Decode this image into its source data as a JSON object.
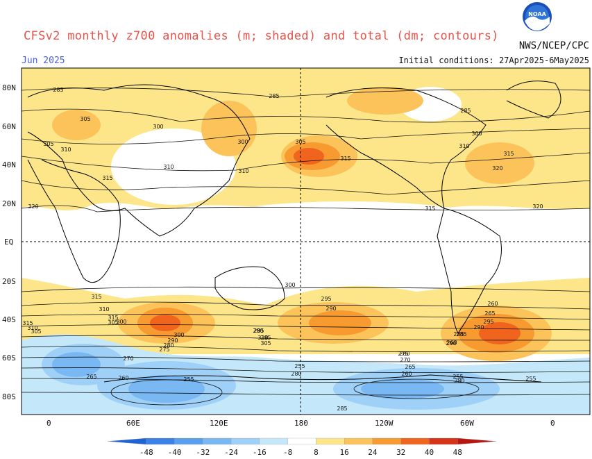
{
  "header": {
    "title": "CFSv2 monthly z700 anomalies (m; shaded) and total (dm; contours)",
    "month": "Jun 2025",
    "agency": "NWS/NCEP/CPC",
    "initial_conditions": "Initial conditions: 27Apr2025-6May2025",
    "logo_text": "NOAA"
  },
  "axes": {
    "lat_labels": [
      "80N",
      "60N",
      "40N",
      "20N",
      "EQ",
      "20S",
      "40S",
      "60S",
      "80S"
    ],
    "lon_labels": [
      "0",
      "60E",
      "120E",
      "180",
      "120W",
      "60W",
      "0"
    ]
  },
  "colorbar": {
    "labels": [
      "-48",
      "-40",
      "-32",
      "-24",
      "-16",
      "-8",
      "8",
      "16",
      "24",
      "32",
      "40",
      "48"
    ],
    "colors": [
      "#1f63d6",
      "#3b82e8",
      "#5a9ef0",
      "#7ab8f4",
      "#9fd0f7",
      "#c4e8fa",
      "#ffffff",
      "#fde68a",
      "#fbc35a",
      "#f79a2f",
      "#f0641e",
      "#d83218",
      "#b8160e"
    ]
  },
  "contour_labels": [
    {
      "text": "285"
    },
    {
      "text": "285"
    },
    {
      "text": "285"
    },
    {
      "text": "305"
    },
    {
      "text": "300"
    },
    {
      "text": "310"
    },
    {
      "text": "310"
    },
    {
      "text": "315"
    },
    {
      "text": "320"
    },
    {
      "text": "305"
    },
    {
      "text": "310"
    },
    {
      "text": "300"
    },
    {
      "text": "315"
    },
    {
      "text": "315"
    },
    {
      "text": "300"
    },
    {
      "text": "305"
    },
    {
      "text": "310"
    },
    {
      "text": "315"
    },
    {
      "text": "320"
    },
    {
      "text": "320"
    },
    {
      "text": "315"
    },
    {
      "text": "310"
    },
    {
      "text": "315"
    },
    {
      "text": "305"
    },
    {
      "text": "300"
    },
    {
      "text": "315"
    },
    {
      "text": "310"
    },
    {
      "text": "305"
    },
    {
      "text": "300"
    },
    {
      "text": "295"
    },
    {
      "text": "290"
    },
    {
      "text": "285"
    },
    {
      "text": "310"
    },
    {
      "text": "305"
    },
    {
      "text": "300"
    },
    {
      "text": "290"
    },
    {
      "text": "280"
    },
    {
      "text": "275"
    },
    {
      "text": "270"
    },
    {
      "text": "265"
    },
    {
      "text": "260"
    },
    {
      "text": "255"
    },
    {
      "text": "260"
    },
    {
      "text": "265"
    },
    {
      "text": "295"
    },
    {
      "text": "290"
    },
    {
      "text": "285"
    },
    {
      "text": "260"
    },
    {
      "text": "255"
    },
    {
      "text": "280"
    },
    {
      "text": "275"
    },
    {
      "text": "270"
    },
    {
      "text": "265"
    },
    {
      "text": "260"
    },
    {
      "text": "255"
    },
    {
      "text": "255"
    },
    {
      "text": "280"
    },
    {
      "text": "285"
    },
    {
      "text": "290"
    },
    {
      "text": "295"
    },
    {
      "text": "290"
    },
    {
      "text": "285"
    },
    {
      "text": "280"
    }
  ]
}
